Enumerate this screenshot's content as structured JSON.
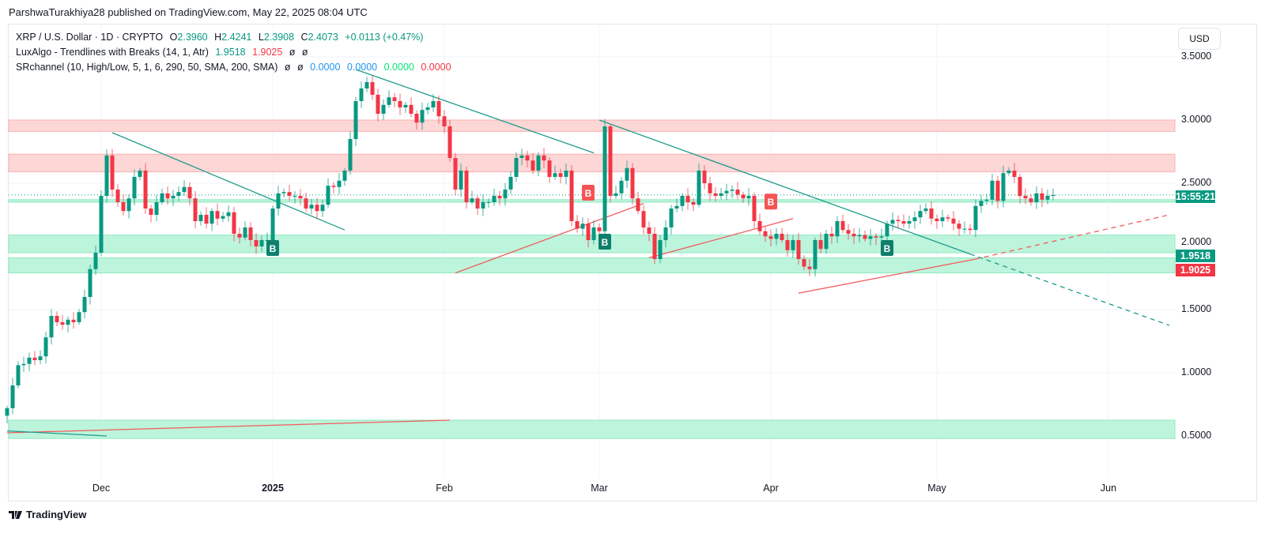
{
  "header": {
    "published": "ParshwaTurakhiya28 published on TradingView.com, May 22, 2025 08:04 UTC"
  },
  "legend": {
    "symbol": "XRP / U.S. Dollar · 1D · CRYPTO",
    "open_label": "O",
    "open": "2.3960",
    "high_label": "H",
    "high": "2.4241",
    "low_label": "L",
    "low": "2.3908",
    "close_label": "C",
    "close": "2.4073",
    "change": "+0.0113 (+0.47%)",
    "ind1_name": "LuxAlgo - Trendlines with Breaks (14, 1, Atr)",
    "ind1_v1": "1.9518",
    "ind1_v2": "1.9025",
    "ind1_e1": "ø",
    "ind1_e2": "ø",
    "ind2_name": "SRchannel (10, High/Low, 5, 1, 6, 290, 50, SMA, 200, SMA)",
    "ind2_e1": "ø",
    "ind2_e2": "ø",
    "ind2_v1": "0.0000",
    "ind2_v2": "0.0000",
    "ind2_v3": "0.0000",
    "ind2_v4": "0.0000"
  },
  "axis": {
    "currency": "USD",
    "countdown": "15:55:21",
    "tag_upper": "1.9518",
    "tag_lower": "1.9025",
    "brand": "TradingView"
  },
  "colors": {
    "up": "#089981",
    "down": "#f23645",
    "resistance": "#f8bcbc",
    "support": "#b5f2d6",
    "trend_down": "#1e9c8a",
    "trend_up": "#f25c5c"
  },
  "chart_data": {
    "type": "candlestick",
    "title": "XRP / U.S. Dollar · 1D · CRYPTO",
    "ylim": [
      0.3,
      3.75
    ],
    "y_ticks": [
      "3.5000",
      "3.0000",
      "2.5000",
      "2.0000",
      "1.5000",
      "1.0000",
      "0.5000"
    ],
    "x_ticks": [
      {
        "label": "Dec",
        "date": "2024-12-01"
      },
      {
        "label": "2025",
        "date": "2025-01-01"
      },
      {
        "label": "Feb",
        "date": "2025-02-01"
      },
      {
        "label": "Mar",
        "date": "2025-03-01"
      },
      {
        "label": "Apr",
        "date": "2025-04-01"
      },
      {
        "label": "May",
        "date": "2025-05-01"
      },
      {
        "label": "Jun",
        "date": "2025-06-01"
      }
    ],
    "start_date": "2024-11-14",
    "first_open": 0.66,
    "close": [
      0.72,
      0.9,
      1.06,
      1.07,
      1.12,
      1.1,
      1.13,
      1.28,
      1.45,
      1.4,
      1.38,
      1.42,
      1.4,
      1.48,
      1.6,
      1.82,
      1.95,
      2.4,
      2.72,
      2.45,
      2.35,
      2.28,
      2.38,
      2.55,
      2.6,
      2.3,
      2.25,
      2.35,
      2.42,
      2.38,
      2.4,
      2.43,
      2.47,
      2.38,
      2.2,
      2.25,
      2.18,
      2.28,
      2.22,
      2.24,
      2.27,
      2.1,
      2.07,
      2.15,
      2.05,
      2.0,
      2.05,
      2.05,
      2.3,
      2.42,
      2.43,
      2.4,
      2.4,
      2.38,
      2.3,
      2.33,
      2.28,
      2.33,
      2.48,
      2.47,
      2.52,
      2.6,
      2.85,
      3.15,
      3.25,
      3.3,
      3.2,
      3.05,
      3.12,
      3.18,
      3.15,
      3.1,
      3.12,
      3.05,
      2.98,
      3.08,
      3.1,
      3.15,
      3.03,
      2.95,
      2.7,
      2.45,
      2.6,
      2.35,
      2.38,
      2.3,
      2.35,
      2.35,
      2.4,
      2.38,
      2.45,
      2.55,
      2.7,
      2.72,
      2.68,
      2.6,
      2.72,
      2.68,
      2.55,
      2.58,
      2.55,
      2.6,
      2.2,
      2.14,
      2.18,
      2.05,
      2.15,
      2.12,
      2.95,
      2.4,
      2.42,
      2.52,
      2.62,
      2.38,
      2.28,
      2.15,
      2.1,
      1.9,
      2.05,
      2.15,
      2.3,
      2.32,
      2.4,
      2.35,
      2.33,
      2.6,
      2.5,
      2.42,
      2.4,
      2.42,
      2.44,
      2.45,
      2.41,
      2.38,
      2.4,
      2.2,
      2.12,
      2.08,
      2.06,
      2.1,
      2.05,
      1.97,
      2.05,
      1.9,
      1.84,
      1.82,
      2.05,
      1.98,
      2.1,
      2.08,
      2.2,
      2.13,
      2.1,
      2.08,
      2.09,
      2.06,
      2.08,
      2.07,
      2.08,
      2.18,
      2.21,
      2.2,
      2.18,
      2.2,
      2.23,
      2.28,
      2.3,
      2.22,
      2.2,
      2.23,
      2.22,
      2.18,
      2.14,
      2.14,
      2.13,
      2.32,
      2.36,
      2.37,
      2.52,
      2.36,
      2.58,
      2.6,
      2.55,
      2.4,
      2.38,
      2.35,
      2.42,
      2.37,
      2.4,
      2.4073
    ],
    "last_price": 2.4073,
    "zones": [
      {
        "kind": "resistance",
        "low": 2.91,
        "high": 3.0
      },
      {
        "kind": "resistance",
        "low": 2.59,
        "high": 2.73
      },
      {
        "kind": "support",
        "low": 2.35,
        "high": 2.37
      },
      {
        "kind": "support",
        "low": 1.95,
        "high": 2.09
      },
      {
        "kind": "support",
        "low": 1.79,
        "high": 1.91
      },
      {
        "kind": "support",
        "low": 0.48,
        "high": 0.625
      }
    ],
    "trendlines": [
      {
        "kind": "down",
        "from": [
          "2024-12-03",
          2.9
        ],
        "to": [
          "2025-01-14",
          2.13
        ]
      },
      {
        "kind": "down",
        "from": [
          "2025-01-16",
          3.4
        ],
        "to": [
          "2025-02-28",
          2.74
        ]
      },
      {
        "kind": "down",
        "from": [
          "2025-03-01",
          3.0
        ],
        "to": [
          "2025-05-07",
          1.94
        ]
      },
      {
        "kind": "down",
        "dashed": true,
        "from": [
          "2025-05-07",
          1.94
        ],
        "to": [
          "2025-06-12",
          1.375
        ]
      },
      {
        "kind": "up",
        "from": [
          "2025-02-03",
          1.79
        ],
        "to": [
          "2025-03-09",
          2.34
        ]
      },
      {
        "kind": "up",
        "from": [
          "2025-03-10",
          1.91
        ],
        "to": [
          "2025-04-05",
          2.22
        ]
      },
      {
        "kind": "up",
        "from": [
          "2025-04-06",
          1.63
        ],
        "to": [
          "2025-05-08",
          1.9
        ]
      },
      {
        "kind": "up",
        "dashed": true,
        "from": [
          "2025-05-08",
          1.9
        ],
        "to": [
          "2025-06-12",
          2.25
        ]
      },
      {
        "kind": "up",
        "from": [
          "2024-11-14",
          0.525
        ],
        "to": [
          "2025-02-02",
          0.625
        ]
      },
      {
        "kind": "down",
        "from": [
          "2024-11-14",
          0.54
        ],
        "to": [
          "2024-12-02",
          0.5
        ]
      }
    ],
    "break_labels": [
      {
        "text": "B",
        "kind": "up",
        "date": "2025-01-01",
        "price": 2.05
      },
      {
        "text": "B",
        "kind": "down",
        "date": "2025-02-27",
        "price": 2.35
      },
      {
        "text": "B",
        "kind": "up",
        "date": "2025-03-02",
        "price": 2.1
      },
      {
        "text": "B",
        "kind": "down",
        "date": "2025-04-01",
        "price": 2.28
      },
      {
        "text": "B",
        "kind": "up",
        "date": "2025-04-22",
        "price": 2.05
      }
    ]
  }
}
